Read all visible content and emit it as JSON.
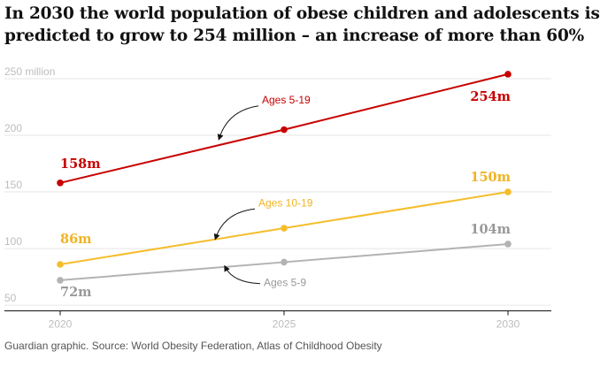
{
  "title_lines": [
    "In 2030 the world population of obese children and adolescents is",
    "predicted to grow to 254 million – an increase of more than 60%"
  ],
  "source": "Guardian graphic. Source: World Obesity Federation, Atlas of Childhood Obesity",
  "chart_data": {
    "type": "line",
    "title": "In 2030 the world population of obese children and adolescents is predicted to grow to 254 million – an increase of more than 60%",
    "xlabel": "",
    "ylabel": "",
    "x": [
      2020,
      2025,
      2030
    ],
    "x_tick_labels": [
      "2020",
      "2025",
      "2030"
    ],
    "ylim": [
      45,
      255
    ],
    "y_ticks": [
      50,
      100,
      150,
      200,
      250
    ],
    "y_tick_labels": [
      "50",
      "100",
      "150",
      "200",
      "250 million"
    ],
    "series": [
      {
        "name": "Ages 5-19",
        "color": "#c70000",
        "values": [
          158,
          205,
          254
        ],
        "labels": [
          "158m",
          "",
          "254m"
        ]
      },
      {
        "name": "Ages 10-19",
        "color": "#f5bd2c",
        "values": [
          86,
          118,
          150
        ],
        "labels": [
          "86m",
          "",
          "150m"
        ]
      },
      {
        "name": "Ages 5-9",
        "color": "#b3b3b3",
        "values": [
          72,
          88,
          104
        ],
        "labels": [
          "72m",
          "",
          "104m"
        ]
      }
    ],
    "label_colors": [
      "#c70000",
      "#f0b323",
      "#999999"
    ]
  }
}
